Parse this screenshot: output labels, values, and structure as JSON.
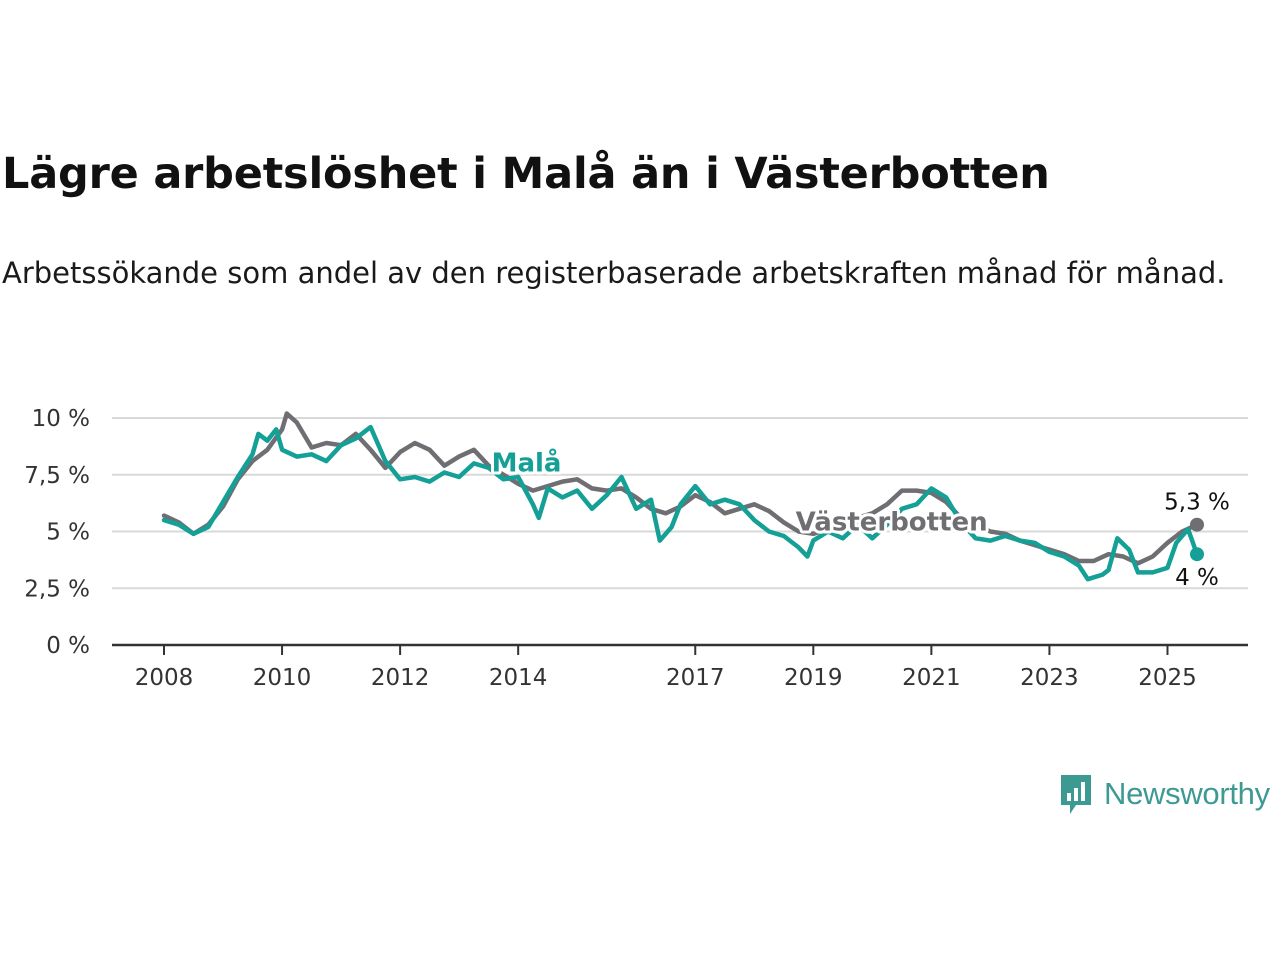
{
  "title": "Lägre arbetslöshet i Malå än i Västerbotten",
  "subtitle": "Arbetssökande som andel av den registerbaserade arbetskraften månad för månad.",
  "logo": {
    "text": "Newsworthy",
    "icon": "newsworthy-logo-icon",
    "color": "#3d9a93"
  },
  "chart_data": {
    "type": "line",
    "ylim": [
      0,
      10
    ],
    "xlim": [
      2008,
      2025.5
    ],
    "y_ticks": [
      0,
      2.5,
      5,
      7.5,
      10
    ],
    "y_tick_labels": [
      "0 %",
      "2,5 %",
      "5 %",
      "7,5 %",
      "10 %"
    ],
    "x_ticks": [
      2008,
      2010,
      2012,
      2014,
      2017,
      2019,
      2021,
      2023,
      2025
    ],
    "x_tick_labels": [
      "2008",
      "2010",
      "2012",
      "2014",
      "2017",
      "2019",
      "2021",
      "2023",
      "2025"
    ],
    "grid": true,
    "series": [
      {
        "name": "Västerbotten",
        "color": "#6f6e73",
        "end_label": "5,3 %",
        "points": [
          [
            2008,
            5.7
          ],
          [
            2008.25,
            5.4
          ],
          [
            2008.5,
            4.9
          ],
          [
            2008.75,
            5.3
          ],
          [
            2009,
            6.1
          ],
          [
            2009.25,
            7.3
          ],
          [
            2009.5,
            8.1
          ],
          [
            2009.75,
            8.6
          ],
          [
            2010,
            9.5
          ],
          [
            2010.08,
            10.2
          ],
          [
            2010.25,
            9.8
          ],
          [
            2010.5,
            8.7
          ],
          [
            2010.75,
            8.9
          ],
          [
            2011,
            8.8
          ],
          [
            2011.25,
            9.3
          ],
          [
            2011.5,
            8.6
          ],
          [
            2011.75,
            7.8
          ],
          [
            2012,
            8.5
          ],
          [
            2012.25,
            8.9
          ],
          [
            2012.5,
            8.6
          ],
          [
            2012.75,
            7.9
          ],
          [
            2013,
            8.3
          ],
          [
            2013.25,
            8.6
          ],
          [
            2013.5,
            7.9
          ],
          [
            2014,
            7.1
          ],
          [
            2014.25,
            6.8
          ],
          [
            2014.5,
            7.0
          ],
          [
            2014.75,
            7.2
          ],
          [
            2015,
            7.3
          ],
          [
            2015.25,
            6.9
          ],
          [
            2015.5,
            6.8
          ],
          [
            2015.75,
            6.9
          ],
          [
            2016,
            6.5
          ],
          [
            2016.25,
            6.0
          ],
          [
            2016.5,
            5.8
          ],
          [
            2016.75,
            6.1
          ],
          [
            2017,
            6.6
          ],
          [
            2017.25,
            6.3
          ],
          [
            2017.5,
            5.8
          ],
          [
            2017.75,
            6.0
          ],
          [
            2018,
            6.2
          ],
          [
            2018.25,
            5.9
          ],
          [
            2018.5,
            5.4
          ],
          [
            2018.75,
            5.0
          ],
          [
            2019,
            4.9
          ],
          [
            2019.25,
            5.1
          ],
          [
            2019.5,
            5.4
          ],
          [
            2019.75,
            5.6
          ],
          [
            2020,
            5.8
          ],
          [
            2020.25,
            6.2
          ],
          [
            2020.5,
            6.8
          ],
          [
            2020.75,
            6.8
          ],
          [
            2021,
            6.7
          ],
          [
            2021.25,
            6.3
          ],
          [
            2021.5,
            5.6
          ],
          [
            2021.75,
            5.3
          ],
          [
            2022,
            5.0
          ],
          [
            2022.25,
            4.9
          ],
          [
            2022.5,
            4.6
          ],
          [
            2022.75,
            4.4
          ],
          [
            2023,
            4.2
          ],
          [
            2023.25,
            4.0
          ],
          [
            2023.5,
            3.7
          ],
          [
            2023.75,
            3.7
          ],
          [
            2024,
            4.0
          ],
          [
            2024.25,
            3.9
          ],
          [
            2024.5,
            3.6
          ],
          [
            2024.75,
            3.9
          ],
          [
            2025,
            4.5
          ],
          [
            2025.25,
            5.0
          ],
          [
            2025.5,
            5.3
          ]
        ]
      },
      {
        "name": "Malå",
        "color": "#14a096",
        "end_label": "4 %",
        "points": [
          [
            2008,
            5.5
          ],
          [
            2008.25,
            5.3
          ],
          [
            2008.5,
            4.9
          ],
          [
            2008.75,
            5.2
          ],
          [
            2009,
            6.3
          ],
          [
            2009.25,
            7.4
          ],
          [
            2009.5,
            8.4
          ],
          [
            2009.6,
            9.3
          ],
          [
            2009.75,
            9.0
          ],
          [
            2009.9,
            9.5
          ],
          [
            2010,
            8.6
          ],
          [
            2010.25,
            8.3
          ],
          [
            2010.5,
            8.4
          ],
          [
            2010.75,
            8.1
          ],
          [
            2011,
            8.8
          ],
          [
            2011.25,
            9.1
          ],
          [
            2011.5,
            9.6
          ],
          [
            2011.75,
            8.1
          ],
          [
            2012,
            7.3
          ],
          [
            2012.25,
            7.4
          ],
          [
            2012.5,
            7.2
          ],
          [
            2012.75,
            7.6
          ],
          [
            2013,
            7.4
          ],
          [
            2013.25,
            8.0
          ],
          [
            2013.5,
            7.8
          ],
          [
            2013.75,
            7.3
          ],
          [
            2014,
            7.4
          ],
          [
            2014.25,
            6.2
          ],
          [
            2014.35,
            5.6
          ],
          [
            2014.5,
            6.9
          ],
          [
            2014.75,
            6.5
          ],
          [
            2015,
            6.8
          ],
          [
            2015.25,
            6.0
          ],
          [
            2015.5,
            6.6
          ],
          [
            2015.75,
            7.4
          ],
          [
            2016,
            6.0
          ],
          [
            2016.25,
            6.4
          ],
          [
            2016.4,
            4.6
          ],
          [
            2016.6,
            5.2
          ],
          [
            2016.75,
            6.2
          ],
          [
            2017,
            7.0
          ],
          [
            2017.25,
            6.2
          ],
          [
            2017.5,
            6.4
          ],
          [
            2017.75,
            6.2
          ],
          [
            2018,
            5.5
          ],
          [
            2018.25,
            5.0
          ],
          [
            2018.5,
            4.8
          ],
          [
            2018.75,
            4.3
          ],
          [
            2018.9,
            3.9
          ],
          [
            2019,
            4.6
          ],
          [
            2019.25,
            5.0
          ],
          [
            2019.5,
            4.7
          ],
          [
            2019.75,
            5.3
          ],
          [
            2020,
            4.7
          ],
          [
            2020.25,
            5.3
          ],
          [
            2020.5,
            6.0
          ],
          [
            2020.75,
            6.2
          ],
          [
            2021,
            6.9
          ],
          [
            2021.25,
            6.5
          ],
          [
            2021.5,
            5.4
          ],
          [
            2021.75,
            4.7
          ],
          [
            2022,
            4.6
          ],
          [
            2022.25,
            4.8
          ],
          [
            2022.5,
            4.6
          ],
          [
            2022.75,
            4.5
          ],
          [
            2023,
            4.1
          ],
          [
            2023.25,
            3.9
          ],
          [
            2023.5,
            3.5
          ],
          [
            2023.65,
            2.9
          ],
          [
            2023.9,
            3.1
          ],
          [
            2024,
            3.3
          ],
          [
            2024.15,
            4.7
          ],
          [
            2024.35,
            4.2
          ],
          [
            2024.5,
            3.2
          ],
          [
            2024.75,
            3.2
          ],
          [
            2025,
            3.4
          ],
          [
            2025.15,
            4.5
          ],
          [
            2025.35,
            5.1
          ],
          [
            2025.5,
            4.0
          ]
        ]
      }
    ],
    "annotations": [
      {
        "text": "Malå",
        "series": "Malå",
        "x": 2013.55,
        "y": 8.0
      },
      {
        "text": "Västerbotten",
        "series": "Västerbotten",
        "x": 2018.7,
        "y": 5.4
      }
    ]
  }
}
